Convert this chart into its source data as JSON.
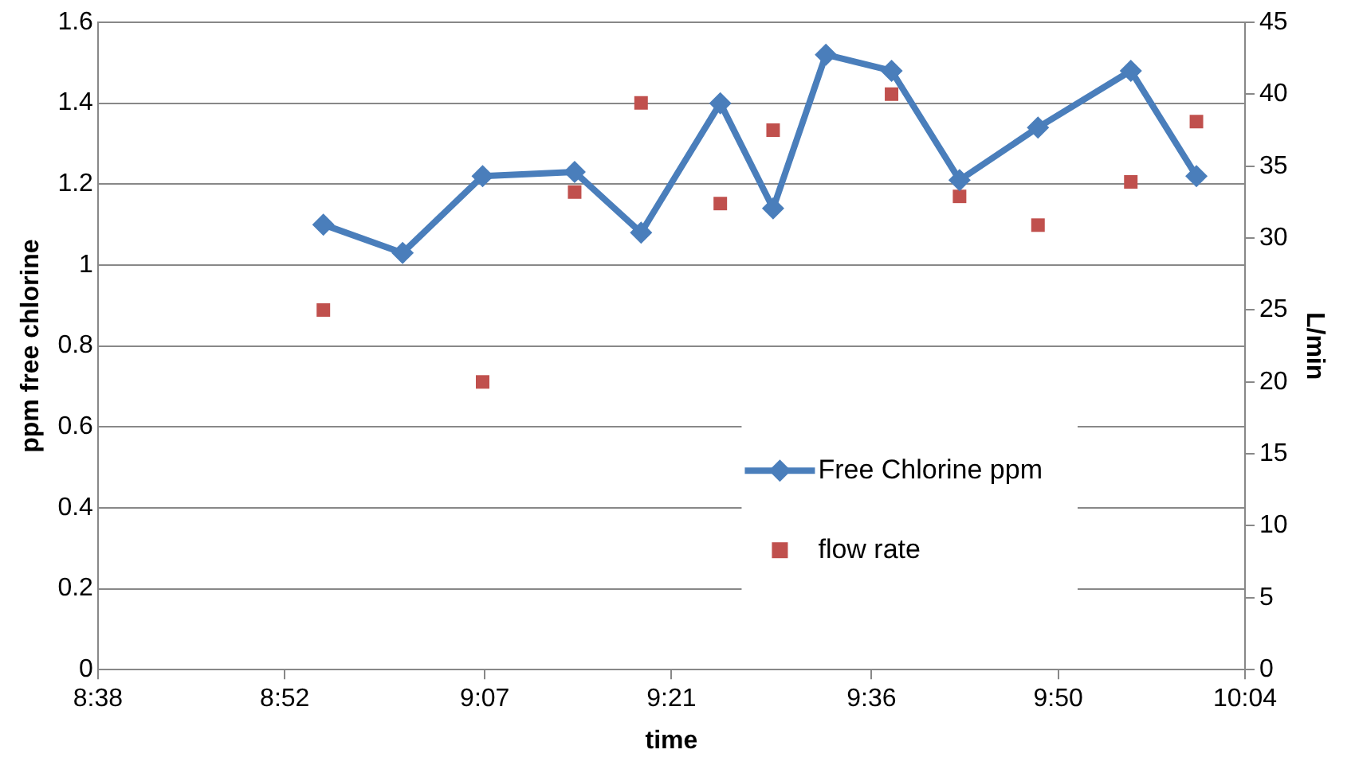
{
  "chart_data": {
    "type": "line",
    "xlabel": "time",
    "ylabel": "ppm free chlorine",
    "y2label": "L/min",
    "xlim": [
      8.6333,
      10.0667
    ],
    "xticks": [
      {
        "value": 8.6333,
        "label": "8:38"
      },
      {
        "value": 8.8667,
        "label": "8:52"
      },
      {
        "value": 9.1167,
        "label": "9:07"
      },
      {
        "value": 9.35,
        "label": "9:21"
      },
      {
        "value": 9.6,
        "label": "9:36"
      },
      {
        "value": 9.8333,
        "label": "9:50"
      },
      {
        "value": 10.0667,
        "label": "10:04"
      }
    ],
    "ylim": [
      0,
      1.6
    ],
    "yticks": [
      0,
      0.2,
      0.4,
      0.6,
      0.8,
      1,
      1.2,
      1.4,
      1.6
    ],
    "y2lim": [
      0,
      45
    ],
    "y2ticks": [
      0,
      5,
      10,
      15,
      20,
      25,
      30,
      35,
      40,
      45
    ],
    "grid": "y",
    "legend": "bottom right",
    "series": [
      {
        "name": "Free Chlorine ppm",
        "color": "#4a7ebb",
        "marker": "diamond",
        "line_style": "solid",
        "x": [
          8.915,
          9.014,
          9.114,
          9.229,
          9.312,
          9.411,
          9.477,
          9.543,
          9.625,
          9.71,
          9.808,
          9.924,
          10.006
        ],
        "values": [
          1.1,
          1.03,
          1.22,
          1.23,
          1.08,
          1.4,
          1.14,
          1.52,
          1.48,
          1.21,
          1.34,
          1.48,
          1.22
        ]
      },
      {
        "name": "flow rate",
        "type": "scatter",
        "axis": "y2",
        "color": "#c0504d",
        "marker": "square",
        "x": [
          8.915,
          9.114,
          9.229,
          9.312,
          9.411,
          9.477,
          9.625,
          9.71,
          9.808,
          9.924,
          10.006
        ],
        "values": [
          25,
          20,
          33.2,
          39.4,
          32.4,
          37.5,
          40,
          32.9,
          30.9,
          33.9,
          38.1
        ]
      }
    ]
  }
}
